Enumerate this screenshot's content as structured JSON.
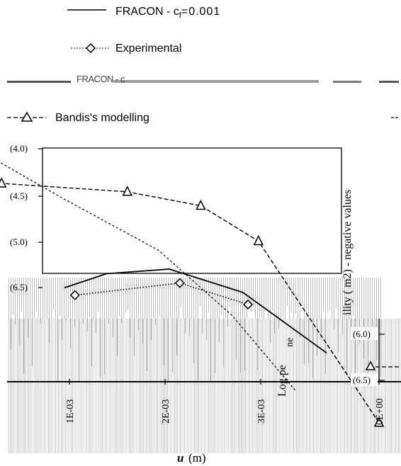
{
  "legend": {
    "fracon_001": "FRACON - c",
    "fracon_001_sub": "f",
    "fracon_001_value": "=0.001",
    "experimental": "Experimental",
    "fracon_0_garbled": "FRACON - c",
    "bandis": "Bandis's modelling"
  },
  "chart_data": {
    "type": "line",
    "ylabel": "Log permeability (m2) - negative values",
    "ylabel_visible_fragments": [
      "Log pe",
      "ne",
      "ility ( m2) - negative values"
    ],
    "xlabel_var": "u",
    "xlabel_unit": "(m)",
    "x_ticks": [
      "0E+00",
      "1E-03",
      "2E-03",
      "3E-03"
    ],
    "y_ticks_left": [
      "(4.0)",
      "(4.5)",
      "(5.0)",
      "(6.5)"
    ],
    "y_ticks_right": [
      "(6.0)",
      "(6.5)"
    ],
    "ylim": [
      4.0,
      7.0
    ],
    "y_inverted": true,
    "series": [
      {
        "name": "Bandis's modelling",
        "style": "dash-triangle",
        "points": [
          [
            0.0,
            6.95
          ],
          [
            0.00115,
            5.0
          ],
          [
            0.0017,
            4.62
          ],
          [
            0.0024,
            4.47
          ],
          [
            0.0036,
            4.38
          ]
        ]
      },
      {
        "name": "Experimental",
        "style": "dotted-diamond",
        "points": [
          [
            0.00125,
            5.68
          ],
          [
            0.0019,
            5.45
          ],
          [
            0.0029,
            5.58
          ]
        ]
      },
      {
        "name": "FRACON - cf=0.001",
        "style": "solid",
        "points": [
          [
            0.0005,
            6.2
          ],
          [
            0.0013,
            5.55
          ],
          [
            0.002,
            5.3
          ],
          [
            0.0026,
            5.35
          ],
          [
            0.003,
            5.5
          ]
        ]
      },
      {
        "name": "",
        "style": "short-dash",
        "points": [
          [
            0.0008,
            6.6
          ],
          [
            0.0014,
            5.8
          ],
          [
            0.0021,
            5.1
          ],
          [
            0.003,
            4.55
          ],
          [
            0.0037,
            4.1
          ]
        ]
      }
    ]
  }
}
